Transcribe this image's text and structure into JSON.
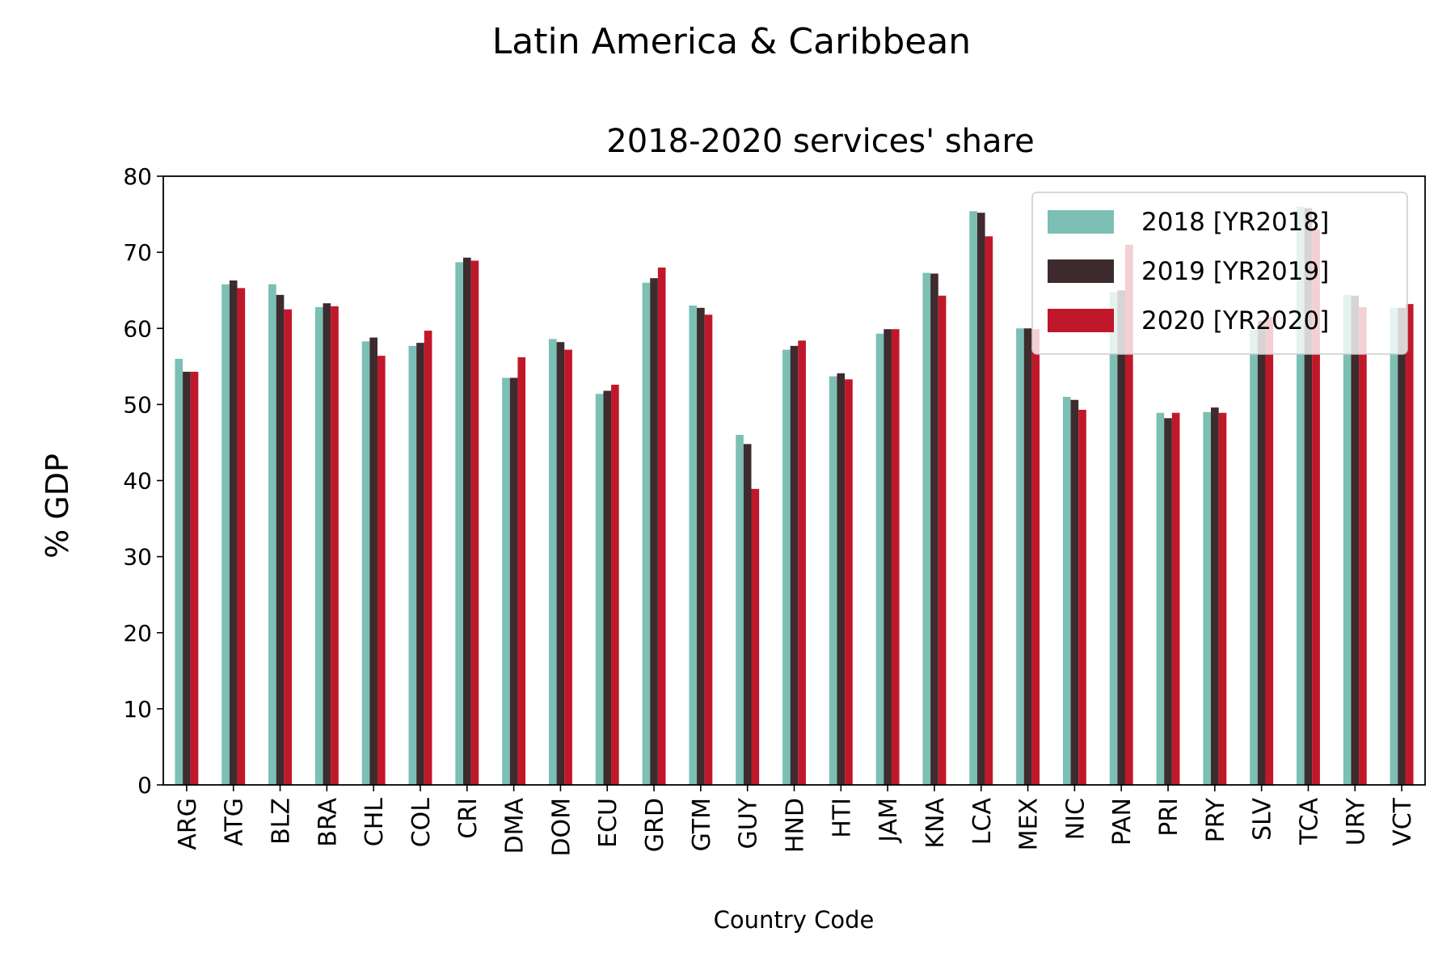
{
  "chart_data": {
    "type": "bar",
    "suptitle": "Latin America & Caribbean",
    "title": "2018-2020 services' share",
    "xlabel": "Country Code",
    "ylabel": "% GDP",
    "ylim": [
      0,
      80
    ],
    "yticks": [
      0,
      10,
      20,
      30,
      40,
      50,
      60,
      70,
      80
    ],
    "legend_position": "top-right",
    "categories": [
      "ARG",
      "ATG",
      "BLZ",
      "BRA",
      "CHL",
      "COL",
      "CRI",
      "DMA",
      "DOM",
      "ECU",
      "GRD",
      "GTM",
      "GUY",
      "HND",
      "HTI",
      "JAM",
      "KNA",
      "LCA",
      "MEX",
      "NIC",
      "PAN",
      "PRI",
      "PRY",
      "SLV",
      "TCA",
      "URY",
      "VCT"
    ],
    "series": [
      {
        "name": "2018 [YR2018]",
        "color": "#7bbfb5",
        "values": [
          56.0,
          65.8,
          65.8,
          62.8,
          58.3,
          57.7,
          68.7,
          53.5,
          58.6,
          51.4,
          66.0,
          63.0,
          46.0,
          57.2,
          53.7,
          59.3,
          67.3,
          75.4,
          60.0,
          51.0,
          64.8,
          48.9,
          49.0,
          59.8,
          76.0,
          64.4,
          62.7
        ]
      },
      {
        "name": "2019 [YR2019]",
        "color": "#3d2b2e",
        "values": [
          54.3,
          66.3,
          64.4,
          63.3,
          58.8,
          58.1,
          69.3,
          53.5,
          58.2,
          51.8,
          66.6,
          62.7,
          44.8,
          57.7,
          54.1,
          59.9,
          67.2,
          75.2,
          60.0,
          50.6,
          65.0,
          48.2,
          49.6,
          61.0,
          75.8,
          64.3,
          62.7
        ]
      },
      {
        "name": "2020 [YR2020]",
        "color": "#c0182a",
        "values": [
          54.3,
          65.3,
          62.5,
          62.9,
          56.4,
          59.7,
          68.9,
          56.2,
          57.2,
          52.6,
          68.0,
          61.8,
          38.9,
          58.4,
          53.3,
          59.9,
          64.3,
          72.1,
          59.9,
          49.3,
          71.0,
          48.9,
          48.9,
          61.5,
          73.0,
          62.8,
          63.2
        ]
      }
    ]
  }
}
